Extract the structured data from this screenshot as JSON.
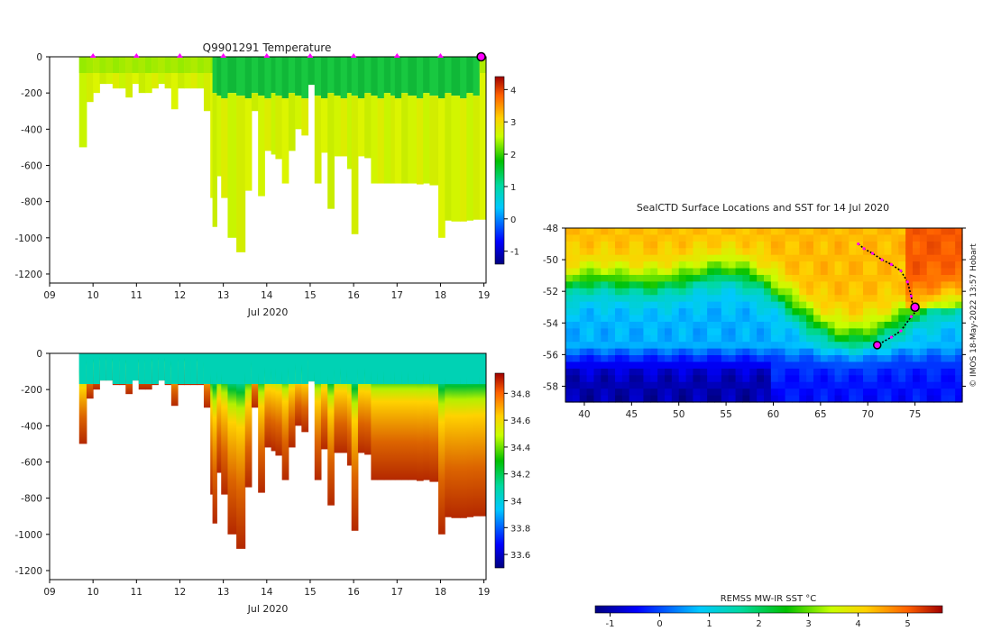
{
  "chart_data": [
    {
      "type": "heatmap",
      "title": "Q9901291  Temperature",
      "xlabel": "Jul 2020",
      "ylabel": "",
      "x_ticks": [
        "09",
        "10",
        "11",
        "12",
        "13",
        "14",
        "15",
        "16",
        "17",
        "18",
        "19"
      ],
      "xlim": [
        9,
        19.05
      ],
      "y_ticks": [
        0,
        -200,
        -400,
        -600,
        -800,
        -1000,
        -1200
      ],
      "ylim": [
        -1250,
        0
      ],
      "colorbar": {
        "ticks": [
          4,
          3,
          2,
          1,
          0,
          -1
        ],
        "min": -1.4,
        "max": 4.4
      },
      "profile_days": [
        9.68,
        9.85,
        10.0,
        10.15,
        10.3,
        10.45,
        10.6,
        10.75,
        10.9,
        11.05,
        11.2,
        11.35,
        11.5,
        11.65,
        11.8,
        11.95,
        12.1,
        12.25,
        12.4,
        12.55,
        12.7,
        12.75,
        12.85,
        12.95,
        13.1,
        13.3,
        13.5,
        13.65,
        13.8,
        13.95,
        14.1,
        14.2,
        14.35,
        14.5,
        14.65,
        14.8,
        14.95,
        15.1,
        15.25,
        15.4,
        15.55,
        15.7,
        15.85,
        15.95,
        16.1,
        16.25,
        16.4,
        16.55,
        16.7,
        16.85,
        16.95,
        17.1,
        17.25,
        17.45,
        17.6,
        17.75,
        17.95,
        18.1,
        18.25,
        18.45,
        18.6,
        18.75,
        18.9
      ],
      "max_depths": [
        500,
        250,
        200,
        150,
        150,
        175,
        175,
        225,
        150,
        200,
        200,
        175,
        150,
        175,
        290,
        175,
        175,
        175,
        175,
        300,
        780,
        940,
        660,
        780,
        1000,
        1080,
        740,
        300,
        770,
        520,
        540,
        565,
        700,
        520,
        400,
        435,
        155,
        700,
        530,
        840,
        550,
        550,
        620,
        980,
        550,
        560,
        700,
        700,
        700,
        700,
        700,
        700,
        700,
        705,
        700,
        710,
        1000,
        905,
        910,
        910,
        905,
        900,
        900
      ],
      "surface_markers": [
        10,
        11,
        12,
        13,
        14,
        15,
        16,
        17,
        18
      ],
      "current_marker_day": 19
    },
    {
      "type": "heatmap",
      "title": "",
      "xlabel": "Jul 2020",
      "ylabel": "",
      "x_ticks": [
        "09",
        "10",
        "11",
        "12",
        "13",
        "14",
        "15",
        "16",
        "17",
        "18",
        "19"
      ],
      "xlim": [
        9,
        19.05
      ],
      "y_ticks": [
        0,
        -200,
        -400,
        -600,
        -800,
        -1000,
        -1200
      ],
      "ylim": [
        -1250,
        0
      ],
      "colorbar": {
        "ticks": [
          34.8,
          34.6,
          34.4,
          34.2,
          34,
          33.8,
          33.6
        ],
        "tick_labels": [
          "34.8",
          "34.6",
          "34.4",
          "34.2",
          "34",
          "33.8",
          "33.6"
        ],
        "min": 33.5,
        "max": 34.95
      }
    },
    {
      "type": "heatmap",
      "title": "SealCTD Surface Locations and SST for 14 Jul 2020",
      "xlabel": "",
      "ylabel": "",
      "x_ticks": [
        40,
        45,
        50,
        55,
        60,
        65,
        70,
        75
      ],
      "xlim": [
        38,
        80
      ],
      "y_ticks": [
        -48,
        -50,
        -52,
        -54,
        -56,
        -58
      ],
      "ylim": [
        -59,
        -48
      ],
      "track": [
        [
          69,
          -49
        ],
        [
          69.6,
          -49.3
        ],
        [
          70.5,
          -49.6
        ],
        [
          71.5,
          -50
        ],
        [
          72.5,
          -50.3
        ],
        [
          73.5,
          -50.7
        ],
        [
          74.2,
          -51.4
        ],
        [
          74.6,
          -52.3
        ],
        [
          74.8,
          -53
        ],
        [
          75.2,
          -53.2
        ],
        [
          74.6,
          -53.6
        ],
        [
          73.5,
          -54.5
        ],
        [
          72.5,
          -54.9
        ],
        [
          71,
          -55.4
        ]
      ],
      "current_location": [
        75,
        -53
      ],
      "start_location": [
        71,
        -55.4
      ],
      "colorbar": {
        "label": "REMSS MW-IR SST °C",
        "ticks": [
          -1,
          0,
          1,
          2,
          3,
          4,
          5
        ],
        "min": -1.3,
        "max": 5.7
      },
      "credit": "© IMOS 18-May-2022 13:57 Hobart"
    }
  ]
}
